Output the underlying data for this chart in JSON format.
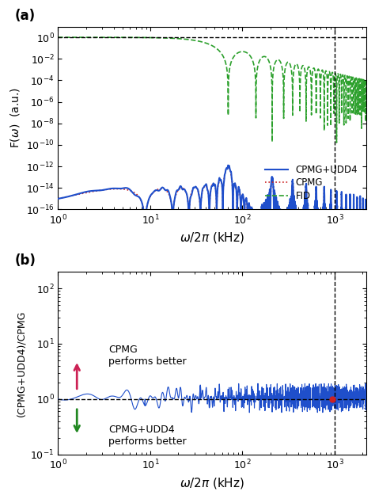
{
  "fig_width": 4.74,
  "fig_height": 6.3,
  "dpi": 100,
  "panel_a": {
    "xlabel": "$\\omega/2\\pi$ (kHz)",
    "ylabel": "F($\\omega$)  (a.u.)",
    "xlim": [
      1,
      2200
    ],
    "ylim": [
      1e-16,
      10
    ],
    "vline_x": 1000,
    "hline_y": 1.0,
    "legend_labels": [
      "CPMG+UDD4",
      "CPMG",
      "FID"
    ],
    "cpmg_udd4_color": "#1f4fcb",
    "cpmg_color": "#cc2222",
    "fid_color": "#2ca02c",
    "legend_loc": "lower right"
  },
  "panel_b": {
    "xlabel": "$\\omega/2\\pi$ (kHz)",
    "ylabel": "(CPMG+UDD4)/CPMG",
    "xlim": [
      1,
      2200
    ],
    "ylim": [
      0.1,
      200
    ],
    "vline_x": 1000,
    "hline_y": 1.0,
    "text_upper": "CPMG\nperforms better",
    "text_lower": "CPMG+UDD4\nperforms better",
    "arrow_up_color": "#cc2255",
    "arrow_down_color": "#228822",
    "ratio_color": "#1f4fcb",
    "marker_color": "#cc2222"
  }
}
